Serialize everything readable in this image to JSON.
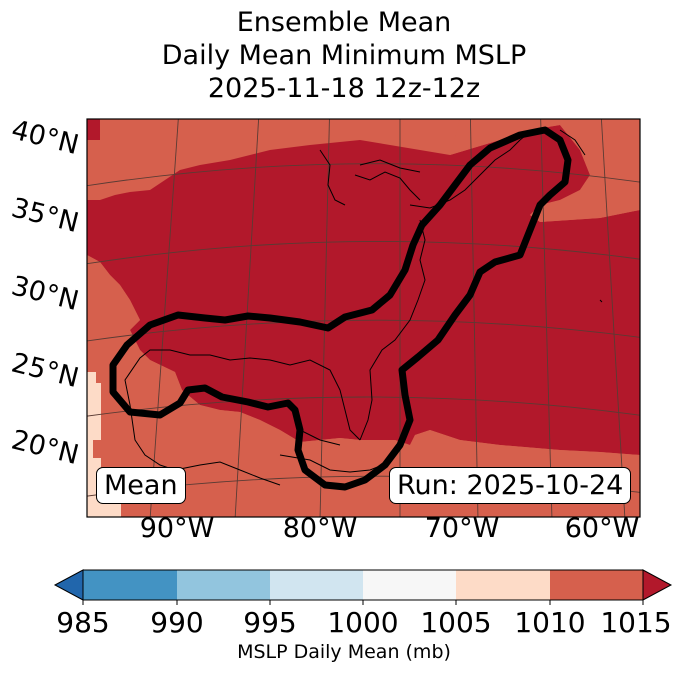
{
  "title": {
    "line1": "Ensemble Mean",
    "line2": "Daily Mean Minimum MSLP",
    "line3": "2025-11-18 12z-12z"
  },
  "map": {
    "lat_labels": [
      "40°N",
      "35°N",
      "30°N",
      "25°N",
      "20°N"
    ],
    "lon_labels": [
      "90°W",
      "80°W",
      "70°W",
      "60°W"
    ],
    "mean_label": "Mean",
    "run_label": "Run: 2025-10-24",
    "colors": {
      "low_1005": "#fddbc7",
      "mid_1010": "#d6604d",
      "high_1015": "#b2182b",
      "contour": "#000000",
      "grid": "#5a3b34"
    }
  },
  "colorbar": {
    "ticks": [
      "985",
      "990",
      "995",
      "1000",
      "1005",
      "1010",
      "1015"
    ],
    "label": "MSLP Daily Mean (mb)",
    "colors": [
      "#2166ac",
      "#4393c3",
      "#92c5de",
      "#d1e5f0",
      "#f7f7f7",
      "#fddbc7",
      "#d6604d",
      "#b2182b"
    ]
  }
}
